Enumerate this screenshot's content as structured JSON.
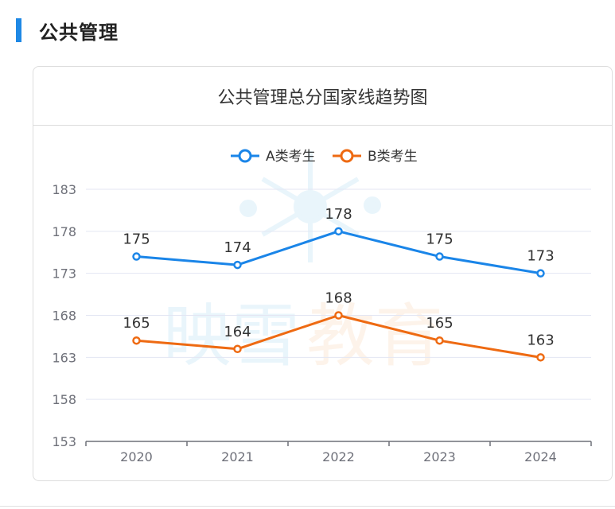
{
  "section": {
    "title": "公共管理"
  },
  "card": {
    "title": "公共管理总分国家线趋势图"
  },
  "watermark": {
    "text_1": "映雪",
    "text_2": "教育"
  },
  "colors": {
    "accent": "#1e88e5",
    "series_a": "#1a85e8",
    "series_b": "#ee6a12",
    "grid": "#e3e6f3",
    "axis": "#6e7079",
    "label": "#333333",
    "tick": "#6e7079"
  },
  "chart_data": {
    "type": "line",
    "title": "公共管理总分国家线趋势图",
    "xlabel": "",
    "ylabel": "",
    "categories": [
      "2020",
      "2021",
      "2022",
      "2023",
      "2024"
    ],
    "ylim": [
      153,
      183
    ],
    "yticks": [
      "183",
      "178",
      "173",
      "168",
      "163",
      "158",
      "153"
    ],
    "grid": true,
    "legend_position": "top-center",
    "series": [
      {
        "name": "A类考生",
        "values": [
          175,
          174,
          178,
          175,
          173
        ],
        "labels": [
          "175",
          "174",
          "178",
          "175",
          "173"
        ]
      },
      {
        "name": "B类考生",
        "values": [
          165,
          164,
          168,
          165,
          163
        ],
        "labels": [
          "165",
          "164",
          "168",
          "165",
          "163"
        ]
      }
    ]
  }
}
